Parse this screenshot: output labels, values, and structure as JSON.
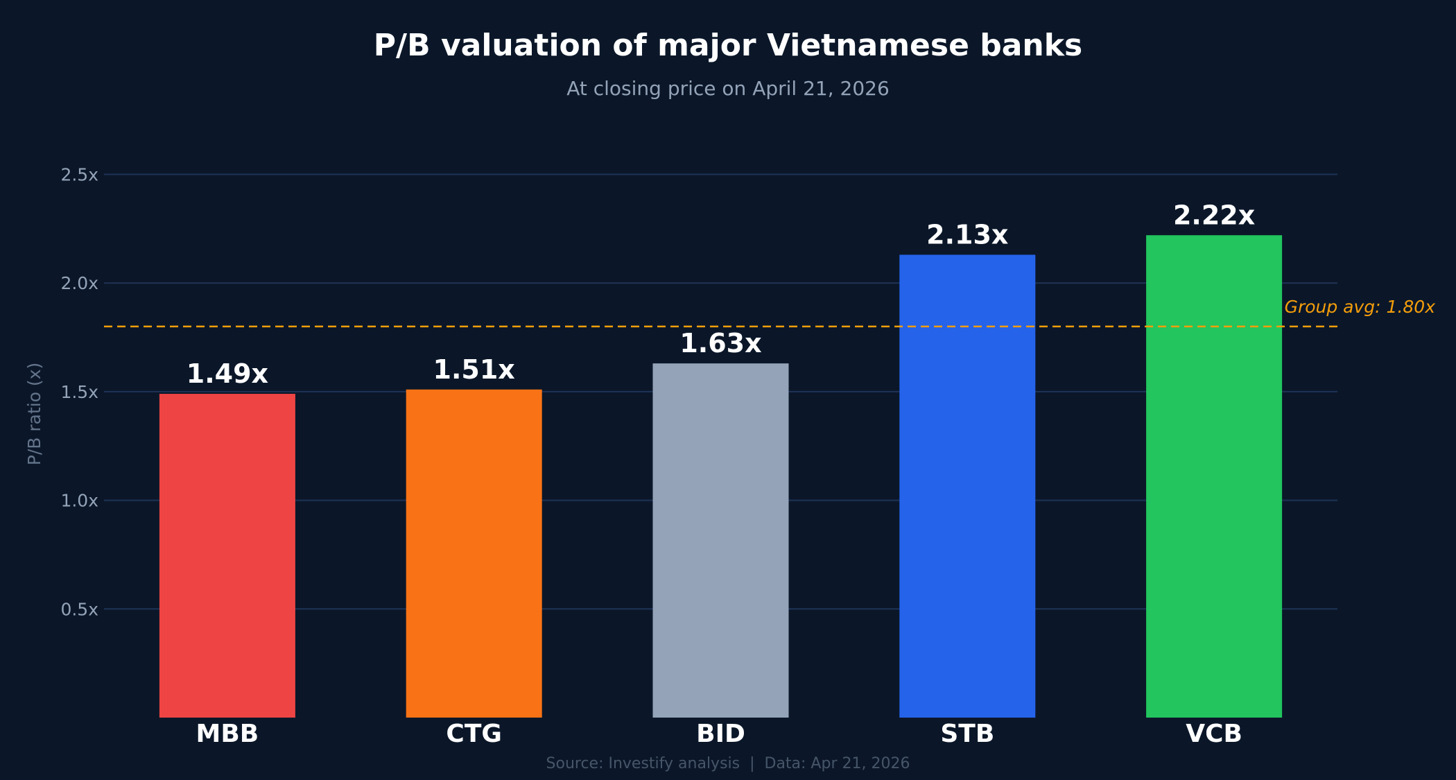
{
  "chart_data": {
    "type": "bar",
    "title": "P/B valuation of major Vietnamese banks",
    "subtitle": "At closing price on April 21, 2026",
    "ylabel": "P/B ratio (x)",
    "xlabel": "",
    "ylim": [
      0,
      2.5
    ],
    "yticks": [
      0.5,
      1.0,
      1.5,
      2.0,
      2.5
    ],
    "ytick_labels": [
      "0.5x",
      "1.0x",
      "1.5x",
      "2.0x",
      "2.5x"
    ],
    "grid": true,
    "categories": [
      "MBB",
      "CTG",
      "BID",
      "STB",
      "VCB"
    ],
    "values": [
      1.49,
      1.51,
      1.63,
      2.13,
      2.22
    ],
    "data_labels": [
      "1.49x",
      "1.51x",
      "1.63x",
      "2.13x",
      "2.22x"
    ],
    "colors": [
      "#ef4444",
      "#f97316",
      "#94a3b8",
      "#2563eb",
      "#22c55e"
    ],
    "reference_line": {
      "value": 1.8,
      "label": "Group avg: 1.80x",
      "color": "#f59e0b",
      "style": "dashed"
    },
    "footer": "Source: Investify analysis  |  Data: Apr 21, 2026"
  },
  "theme": {
    "background": "#0b1729",
    "grid": "#1e3356",
    "text": "#ffffff",
    "muted": "#94a3b8"
  }
}
